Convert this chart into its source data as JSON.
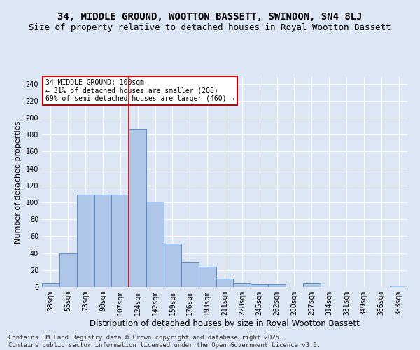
{
  "title": "34, MIDDLE GROUND, WOOTTON BASSETT, SWINDON, SN4 8LJ",
  "subtitle": "Size of property relative to detached houses in Royal Wootton Bassett",
  "xlabel": "Distribution of detached houses by size in Royal Wootton Bassett",
  "ylabel": "Number of detached properties",
  "categories": [
    "38sqm",
    "55sqm",
    "73sqm",
    "90sqm",
    "107sqm",
    "124sqm",
    "142sqm",
    "159sqm",
    "176sqm",
    "193sqm",
    "211sqm",
    "228sqm",
    "245sqm",
    "262sqm",
    "280sqm",
    "297sqm",
    "314sqm",
    "331sqm",
    "349sqm",
    "366sqm",
    "383sqm"
  ],
  "values": [
    4,
    40,
    109,
    109,
    109,
    187,
    101,
    51,
    29,
    24,
    10,
    4,
    3,
    3,
    0,
    4,
    0,
    0,
    0,
    0,
    2
  ],
  "bar_color": "#aec6e8",
  "bar_edge_color": "#5b8fc9",
  "annotation_box_text": "34 MIDDLE GROUND: 100sqm\n← 31% of detached houses are smaller (208)\n69% of semi-detached houses are larger (460) →",
  "annotation_box_color": "#ffffff",
  "annotation_box_edge_color": "#cc0000",
  "vline_x_index": 4,
  "vline_color": "#cc0000",
  "ylim": [
    0,
    248
  ],
  "yticks": [
    0,
    20,
    40,
    60,
    80,
    100,
    120,
    140,
    160,
    180,
    200,
    220,
    240
  ],
  "bg_color": "#dce6f5",
  "grid_color": "#ffffff",
  "footer_text": "Contains HM Land Registry data © Crown copyright and database right 2025.\nContains public sector information licensed under the Open Government Licence v3.0.",
  "title_fontsize": 10,
  "subtitle_fontsize": 9,
  "xlabel_fontsize": 8.5,
  "ylabel_fontsize": 8,
  "tick_fontsize": 7,
  "footer_fontsize": 6.5
}
